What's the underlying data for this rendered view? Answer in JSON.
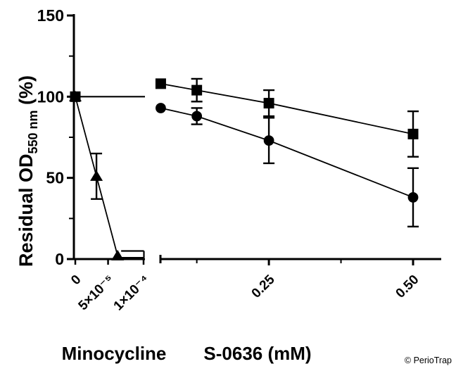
{
  "figure": {
    "copyright": "© PerioTrap"
  },
  "colors": {
    "accent_red": "#F8423A",
    "series_black": "#000000",
    "copyright_color": "#222222"
  },
  "chart_data": {
    "type": "line",
    "title": "",
    "ylabel": "Residual OD550 nm (%)",
    "ylabel_parts": {
      "pre": "Residual OD",
      "sub": "550 nm",
      "post": " (%)"
    },
    "ylim": [
      0,
      150
    ],
    "yticks": [
      0,
      50,
      100,
      150
    ],
    "yticks_minor": [
      25,
      75,
      125
    ],
    "grid": false,
    "legend": "none",
    "panels": [
      {
        "title": "Minocycline",
        "title_color_key": "accent_red",
        "tick_label_color_key": "accent_red",
        "tick_labels": [
          {
            "label": "0",
            "frac": 0
          },
          {
            "label": "5×10⁻⁵",
            "frac": 0.48
          },
          {
            "label": "1×10⁻⁴",
            "frac": 1
          }
        ],
        "reference_line": {
          "value": 100,
          "marker": "square"
        },
        "series": [
          {
            "name": "minocycline-triangles",
            "marker": "triangle",
            "points": [
              {
                "frac": 0,
                "y": 100,
                "err": 0
              },
              {
                "frac": 0.31,
                "y": 51,
                "err": 14
              },
              {
                "frac": 0.62,
                "y": 2,
                "err": 3,
                "flat_cap_to_axis_end": true
              }
            ]
          }
        ]
      },
      {
        "title": "S-0636 (mM)",
        "title_color_key": "series_black",
        "tick_label_color_key": "series_black",
        "xticks": [
          {
            "label": "0.25",
            "x": 0.25
          },
          {
            "label": "0.50",
            "x": 0.5
          }
        ],
        "xticks_minor": [
          0.125,
          0.375
        ],
        "series": [
          {
            "name": "s0636-squares",
            "marker": "square",
            "points": [
              {
                "x": 0.0625,
                "y": 108,
                "err": 0
              },
              {
                "x": 0.125,
                "y": 104,
                "err": 7
              },
              {
                "x": 0.25,
                "y": 96,
                "err": 8
              },
              {
                "x": 0.5,
                "y": 77,
                "err": 14
              }
            ]
          },
          {
            "name": "s0636-circles",
            "marker": "circle",
            "points": [
              {
                "x": 0.0625,
                "y": 93,
                "err": 0
              },
              {
                "x": 0.125,
                "y": 88,
                "err": 5
              },
              {
                "x": 0.25,
                "y": 73,
                "err": 14
              },
              {
                "x": 0.5,
                "y": 38,
                "err": 18
              }
            ]
          }
        ]
      }
    ]
  }
}
